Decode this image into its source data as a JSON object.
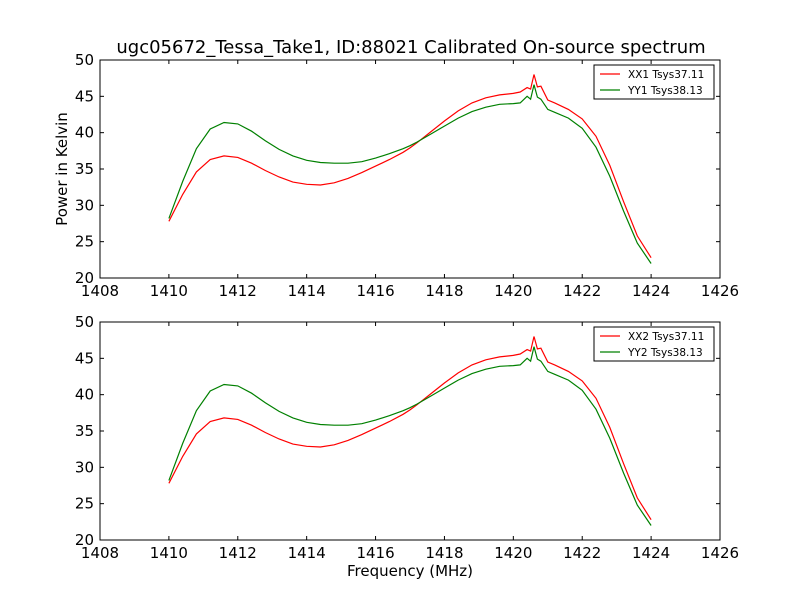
{
  "figure": {
    "title": "ugc05672_Tessa_Take1, ID:88021 Calibrated On-source spectrum",
    "colors": {
      "red": "#ff0000",
      "green": "#008000"
    }
  },
  "chart_data": [
    {
      "type": "line",
      "ylabel": "Power in Kelvin",
      "xlabel": "",
      "xlim": [
        1408,
        1426
      ],
      "ylim": [
        20,
        50
      ],
      "xticks": [
        "1408",
        "1410",
        "1412",
        "1414",
        "1416",
        "1418",
        "1420",
        "1422",
        "1424",
        "1426"
      ],
      "yticks": [
        "20",
        "25",
        "30",
        "35",
        "40",
        "45",
        "50"
      ],
      "legend_position": "top-right",
      "series": [
        {
          "name": "XX1 Tsys37.11",
          "color": "#ff0000",
          "x": [
            1410,
            1410.4,
            1410.8,
            1411.2,
            1411.6,
            1412.0,
            1412.4,
            1412.8,
            1413.2,
            1413.6,
            1414.0,
            1414.4,
            1414.8,
            1415.2,
            1415.6,
            1416.0,
            1416.4,
            1416.8,
            1417.0,
            1417.2,
            1417.6,
            1418.0,
            1418.4,
            1418.8,
            1419.2,
            1419.6,
            1420.0,
            1420.2,
            1420.4,
            1420.5,
            1420.6,
            1420.7,
            1420.8,
            1421.0,
            1421.2,
            1421.6,
            1422.0,
            1422.4,
            1422.8,
            1423.2,
            1423.6,
            1424.0
          ],
          "y": [
            27.8,
            31.5,
            34.6,
            36.3,
            36.8,
            36.6,
            35.8,
            34.8,
            33.9,
            33.2,
            32.9,
            32.8,
            33.1,
            33.7,
            34.5,
            35.4,
            36.3,
            37.3,
            37.9,
            38.6,
            40.1,
            41.6,
            43.0,
            44.1,
            44.8,
            45.2,
            45.4,
            45.6,
            46.2,
            46.0,
            48.0,
            46.3,
            46.4,
            44.5,
            44.1,
            43.2,
            41.9,
            39.5,
            35.5,
            30.5,
            25.8,
            22.8
          ]
        },
        {
          "name": "YY1 Tsys38.13",
          "color": "#008000",
          "x": [
            1410,
            1410.4,
            1410.8,
            1411.2,
            1411.6,
            1412.0,
            1412.4,
            1412.8,
            1413.2,
            1413.6,
            1414.0,
            1414.4,
            1414.8,
            1415.2,
            1415.6,
            1416.0,
            1416.4,
            1416.8,
            1417.0,
            1417.2,
            1417.6,
            1418.0,
            1418.4,
            1418.8,
            1419.2,
            1419.6,
            1420.0,
            1420.2,
            1420.4,
            1420.5,
            1420.6,
            1420.7,
            1420.8,
            1421.0,
            1421.2,
            1421.6,
            1422.0,
            1422.4,
            1422.8,
            1423.2,
            1423.6,
            1424.0
          ],
          "y": [
            28.2,
            33.3,
            37.8,
            40.5,
            41.4,
            41.2,
            40.2,
            38.9,
            37.7,
            36.8,
            36.2,
            35.9,
            35.8,
            35.8,
            36.0,
            36.5,
            37.1,
            37.8,
            38.2,
            38.7,
            39.8,
            40.9,
            42.0,
            42.9,
            43.5,
            43.9,
            44.0,
            44.1,
            45.0,
            44.6,
            46.6,
            44.9,
            44.6,
            43.2,
            42.8,
            42.0,
            40.6,
            38.0,
            34.0,
            29.2,
            24.8,
            22.0
          ]
        }
      ]
    },
    {
      "type": "line",
      "ylabel": "",
      "xlabel": "Frequency (MHz)",
      "xlim": [
        1408,
        1426
      ],
      "ylim": [
        20,
        50
      ],
      "xticks": [
        "1408",
        "1410",
        "1412",
        "1414",
        "1416",
        "1418",
        "1420",
        "1422",
        "1424",
        "1426"
      ],
      "yticks": [
        "20",
        "25",
        "30",
        "35",
        "40",
        "45",
        "50"
      ],
      "legend_position": "top-right",
      "series": [
        {
          "name": "XX2 Tsys37.11",
          "color": "#ff0000",
          "x": [
            1410,
            1410.4,
            1410.8,
            1411.2,
            1411.6,
            1412.0,
            1412.4,
            1412.8,
            1413.2,
            1413.6,
            1414.0,
            1414.4,
            1414.8,
            1415.2,
            1415.6,
            1416.0,
            1416.4,
            1416.8,
            1417.0,
            1417.2,
            1417.6,
            1418.0,
            1418.4,
            1418.8,
            1419.2,
            1419.6,
            1420.0,
            1420.2,
            1420.4,
            1420.5,
            1420.6,
            1420.7,
            1420.8,
            1421.0,
            1421.2,
            1421.6,
            1422.0,
            1422.4,
            1422.8,
            1423.2,
            1423.6,
            1424.0
          ],
          "y": [
            27.8,
            31.5,
            34.6,
            36.3,
            36.8,
            36.6,
            35.8,
            34.8,
            33.9,
            33.2,
            32.9,
            32.8,
            33.1,
            33.7,
            34.5,
            35.4,
            36.3,
            37.3,
            37.9,
            38.6,
            40.1,
            41.6,
            43.0,
            44.1,
            44.8,
            45.2,
            45.4,
            45.6,
            46.2,
            46.0,
            48.0,
            46.3,
            46.4,
            44.5,
            44.1,
            43.2,
            41.9,
            39.5,
            35.5,
            30.5,
            25.8,
            22.8
          ]
        },
        {
          "name": "YY2 Tsys38.13",
          "color": "#008000",
          "x": [
            1410,
            1410.4,
            1410.8,
            1411.2,
            1411.6,
            1412.0,
            1412.4,
            1412.8,
            1413.2,
            1413.6,
            1414.0,
            1414.4,
            1414.8,
            1415.2,
            1415.6,
            1416.0,
            1416.4,
            1416.8,
            1417.0,
            1417.2,
            1417.6,
            1418.0,
            1418.4,
            1418.8,
            1419.2,
            1419.6,
            1420.0,
            1420.2,
            1420.4,
            1420.5,
            1420.6,
            1420.7,
            1420.8,
            1421.0,
            1421.2,
            1421.6,
            1422.0,
            1422.4,
            1422.8,
            1423.2,
            1423.6,
            1424.0
          ],
          "y": [
            28.2,
            33.3,
            37.8,
            40.5,
            41.4,
            41.2,
            40.2,
            38.9,
            37.7,
            36.8,
            36.2,
            35.9,
            35.8,
            35.8,
            36.0,
            36.5,
            37.1,
            37.8,
            38.2,
            38.7,
            39.8,
            40.9,
            42.0,
            42.9,
            43.5,
            43.9,
            44.0,
            44.1,
            45.0,
            44.6,
            46.6,
            44.9,
            44.6,
            43.2,
            42.8,
            42.0,
            40.6,
            38.0,
            34.0,
            29.2,
            24.8,
            22.0
          ]
        }
      ]
    }
  ]
}
